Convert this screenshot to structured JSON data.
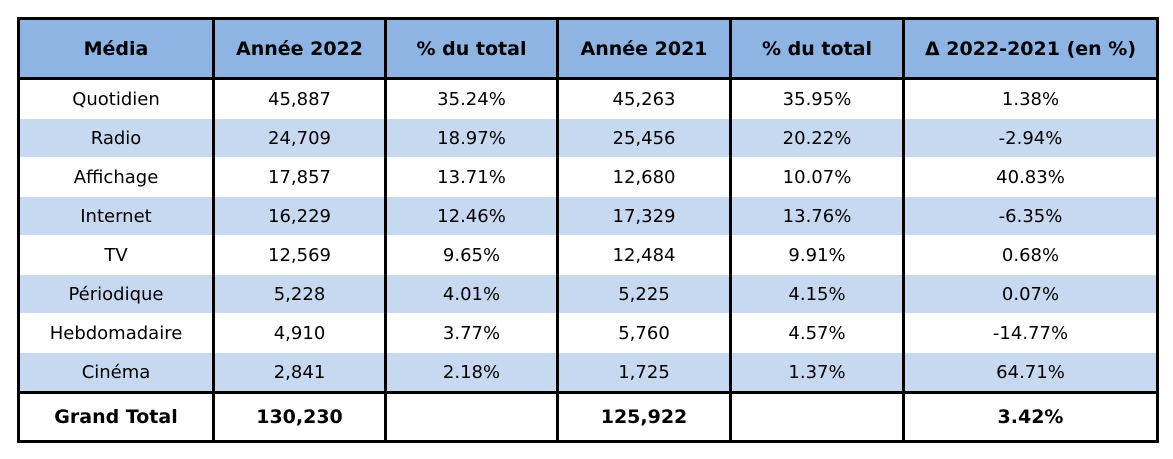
{
  "chart_data": {
    "type": "table",
    "columns": [
      "Média",
      "Année 2022",
      "% du total",
      "Année 2021",
      "% du total",
      "Δ 2022-2021 (en %)"
    ],
    "rows": [
      [
        "Quotidien",
        "45,887",
        "35.24%",
        "45,263",
        "35.95%",
        "1.38%"
      ],
      [
        "Radio",
        "24,709",
        "18.97%",
        "25,456",
        "20.22%",
        "-2.94%"
      ],
      [
        "Affichage",
        "17,857",
        "13.71%",
        "12,680",
        "10.07%",
        "40.83%"
      ],
      [
        "Internet",
        "16,229",
        "12.46%",
        "17,329",
        "13.76%",
        "-6.35%"
      ],
      [
        "TV",
        "12,569",
        "9.65%",
        "12,484",
        "9.91%",
        "0.68%"
      ],
      [
        "Périodique",
        "5,228",
        "4.01%",
        "5,225",
        "4.15%",
        "0.07%"
      ],
      [
        "Hebdomadaire",
        "4,910",
        "3.77%",
        "5,760",
        "4.57%",
        "-14.77%"
      ],
      [
        "Cinéma",
        "2,841",
        "2.18%",
        "1,725",
        "1.37%",
        "64.71%"
      ]
    ],
    "total": [
      "Grand Total",
      "130,230",
      "",
      "125,922",
      "",
      "3.42%"
    ],
    "header_color": "#8eb4e3",
    "stripe_color": "#c6d9f1"
  }
}
